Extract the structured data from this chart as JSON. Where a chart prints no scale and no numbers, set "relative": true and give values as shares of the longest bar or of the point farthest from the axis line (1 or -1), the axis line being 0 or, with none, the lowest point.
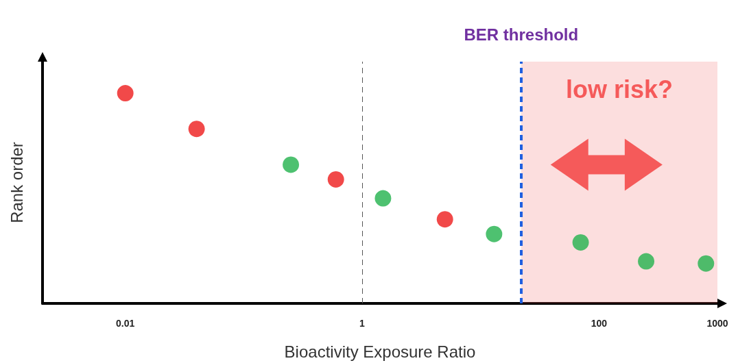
{
  "chart_data": {
    "type": "scatter",
    "xlabel": "Bioactivity Exposure Ratio",
    "ylabel": "Rank order",
    "log": "x",
    "relative": true,
    "tick_labels": "x",
    "grid": false,
    "marker": "circle",
    "xlim": [
      0.002,
      1000
    ],
    "xticks": [
      0.01,
      1,
      100,
      1000
    ],
    "x": [
      0.01,
      0.04,
      0.25,
      0.6,
      1.5,
      5,
      13,
      70,
      250,
      800
    ],
    "values": [
      1,
      0.83,
      0.66,
      0.59,
      0.5,
      0.4,
      0.33,
      0.29,
      0.2,
      0.19
    ],
    "colors": [
      "#ee1c1c",
      "#ee1c1c",
      "#22b24c",
      "#ee1c1c",
      "#22b24c",
      "#ee1c1c",
      "#22b24c",
      "#22b24c",
      "#22b24c",
      "#22b24c"
    ],
    "ref_lines": [
      {
        "axis": "x",
        "value": 1,
        "label": null,
        "color": "#555555",
        "line_style": "dashed"
      },
      {
        "axis": "x",
        "value": 22,
        "label": "BER threshold",
        "color": "#1f5fe0",
        "line_style": "dashed"
      }
    ],
    "bands": [
      {
        "axis": "x",
        "from": 22,
        "to": 1000,
        "label": "low risk?",
        "color": "#f26b6b"
      }
    ]
  }
}
